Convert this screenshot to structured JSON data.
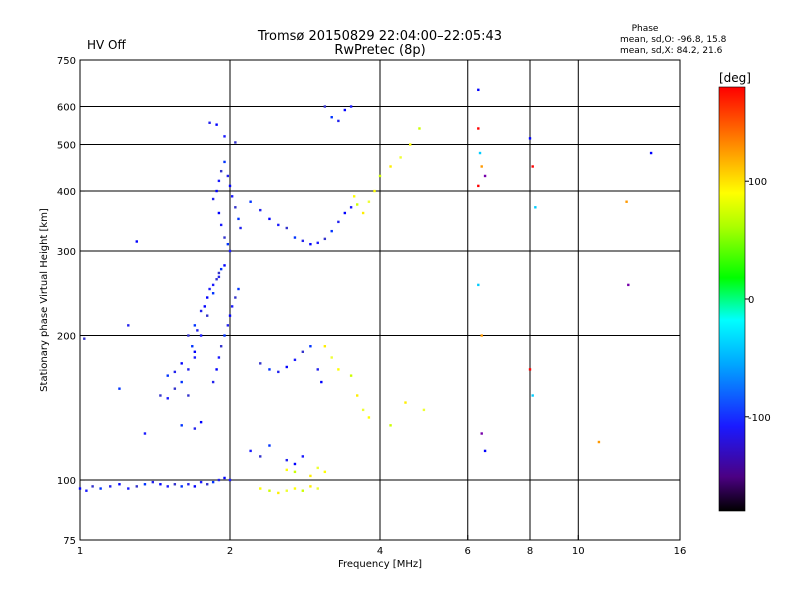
{
  "header": {
    "title_line1": "Tromsø 20150829 22:04:00–22:05:43",
    "title_line2": "RwPretec (8p)",
    "status": "HV Off",
    "status_color": "#d40000",
    "phase_heading": "Phase",
    "phase_o": "mean, sd,O: -96.8, 15.8",
    "phase_x": "mean, sd,X:  84.2, 21.6"
  },
  "chart_data": {
    "type": "scatter",
    "title": "Tromsø 20150829 22:04:00–22:05:43",
    "subtitle": "RwPretec (8p)",
    "xlabel": "Frequency [MHz]",
    "ylabel": "Stationary phase Virtual Height [km]",
    "xscale": "log",
    "yscale": "log",
    "xlim": [
      1,
      16
    ],
    "ylim": [
      75,
      750
    ],
    "xticks": [
      1,
      2,
      4,
      6,
      8,
      10,
      16
    ],
    "yticks": [
      75,
      100,
      200,
      300,
      400,
      500,
      600,
      750
    ],
    "x_gridlines": [
      2,
      4,
      6,
      8,
      10
    ],
    "y_gridlines": [
      100,
      200,
      300,
      400,
      500,
      600
    ],
    "colorbar": {
      "label": "[deg]",
      "range": [
        -180,
        180
      ],
      "ticks": [
        100,
        0,
        -100
      ],
      "scheme": "black-purple-blue-cyan-green-yellow-orange-red"
    },
    "series": [
      {
        "points": [
          [
            1.0,
            96
          ],
          [
            1.03,
            95
          ],
          [
            1.06,
            97
          ],
          [
            1.1,
            96
          ],
          [
            1.15,
            97
          ],
          [
            1.2,
            98
          ],
          [
            1.25,
            96
          ],
          [
            1.3,
            97
          ],
          [
            1.35,
            98
          ],
          [
            1.4,
            99
          ],
          [
            1.45,
            98
          ],
          [
            1.5,
            97
          ],
          [
            1.55,
            98
          ],
          [
            1.6,
            97
          ],
          [
            1.65,
            98
          ],
          [
            1.7,
            97
          ],
          [
            1.75,
            99
          ],
          [
            1.8,
            98
          ],
          [
            1.85,
            99
          ],
          [
            1.9,
            100
          ],
          [
            1.95,
            101
          ],
          [
            2.0,
            100
          ],
          [
            1.02,
            197
          ],
          [
            1.2,
            155
          ],
          [
            1.25,
            210
          ],
          [
            1.3,
            314
          ],
          [
            1.35,
            125
          ],
          [
            1.45,
            150
          ],
          [
            1.5,
            165
          ],
          [
            1.55,
            168
          ],
          [
            1.6,
            175
          ],
          [
            1.7,
            180
          ],
          [
            1.65,
            150
          ],
          [
            1.6,
            130
          ],
          [
            1.7,
            128
          ],
          [
            1.75,
            132
          ],
          [
            1.5,
            148
          ],
          [
            1.55,
            155
          ],
          [
            1.6,
            160
          ],
          [
            1.65,
            170
          ],
          [
            1.7,
            185
          ],
          [
            1.75,
            200
          ],
          [
            1.8,
            220
          ],
          [
            1.85,
            245
          ],
          [
            1.9,
            265
          ],
          [
            1.95,
            280
          ],
          [
            2.0,
            300
          ],
          [
            1.65,
            200
          ],
          [
            1.7,
            210
          ],
          [
            1.75,
            225
          ],
          [
            1.8,
            240
          ],
          [
            1.85,
            255
          ],
          [
            1.9,
            270
          ],
          [
            1.68,
            190
          ],
          [
            1.72,
            205
          ],
          [
            1.78,
            230
          ],
          [
            1.82,
            250
          ],
          [
            1.88,
            262
          ],
          [
            1.92,
            275
          ],
          [
            1.85,
            160
          ],
          [
            1.88,
            170
          ],
          [
            1.9,
            180
          ],
          [
            1.92,
            190
          ],
          [
            1.95,
            200
          ],
          [
            1.98,
            210
          ],
          [
            2.0,
            220
          ],
          [
            2.02,
            230
          ],
          [
            2.05,
            240
          ],
          [
            2.08,
            250
          ],
          [
            1.85,
            385
          ],
          [
            1.88,
            400
          ],
          [
            1.9,
            420
          ],
          [
            1.92,
            440
          ],
          [
            1.95,
            460
          ],
          [
            1.98,
            430
          ],
          [
            2.0,
            410
          ],
          [
            2.02,
            390
          ],
          [
            2.05,
            370
          ],
          [
            2.08,
            350
          ],
          [
            2.1,
            335
          ],
          [
            1.9,
            360
          ],
          [
            1.92,
            340
          ],
          [
            1.95,
            320
          ],
          [
            1.98,
            310
          ],
          [
            1.82,
            555
          ],
          [
            1.88,
            550
          ],
          [
            1.95,
            520
          ],
          [
            2.05,
            505
          ],
          [
            2.2,
            380
          ],
          [
            2.3,
            365
          ],
          [
            2.4,
            350
          ],
          [
            2.5,
            340
          ],
          [
            2.6,
            335
          ],
          [
            2.7,
            320
          ],
          [
            2.8,
            315
          ],
          [
            2.9,
            310
          ],
          [
            3.0,
            312
          ],
          [
            3.1,
            318
          ],
          [
            3.2,
            330
          ],
          [
            3.3,
            345
          ],
          [
            3.4,
            360
          ],
          [
            3.5,
            370
          ],
          [
            2.3,
            175
          ],
          [
            2.4,
            170
          ],
          [
            2.5,
            168
          ],
          [
            2.6,
            172
          ],
          [
            2.7,
            178
          ],
          [
            2.8,
            185
          ],
          [
            2.9,
            190
          ],
          [
            3.0,
            170
          ],
          [
            3.05,
            160
          ],
          [
            2.2,
            115
          ],
          [
            2.3,
            112
          ],
          [
            2.4,
            118
          ],
          [
            2.6,
            110
          ],
          [
            2.7,
            108
          ],
          [
            2.8,
            112
          ],
          [
            3.1,
            600
          ],
          [
            3.2,
            570
          ],
          [
            3.3,
            560
          ],
          [
            3.4,
            590
          ],
          [
            3.5,
            600
          ]
        ],
        "phase": "about -110"
      },
      {
        "points": [
          [
            2.3,
            96
          ],
          [
            2.4,
            95
          ],
          [
            2.5,
            94
          ],
          [
            2.6,
            95
          ],
          [
            2.7,
            96
          ],
          [
            2.8,
            95
          ],
          [
            2.9,
            97
          ],
          [
            3.0,
            96
          ],
          [
            3.55,
            390
          ],
          [
            3.6,
            375
          ],
          [
            3.7,
            360
          ],
          [
            3.8,
            380
          ],
          [
            3.9,
            400
          ],
          [
            4.0,
            430
          ],
          [
            4.2,
            450
          ],
          [
            4.4,
            470
          ],
          [
            4.6,
            500
          ],
          [
            4.8,
            540
          ],
          [
            3.1,
            190
          ],
          [
            3.2,
            180
          ],
          [
            3.3,
            170
          ],
          [
            3.5,
            165
          ],
          [
            3.6,
            150
          ],
          [
            3.7,
            140
          ],
          [
            3.8,
            135
          ],
          [
            4.2,
            130
          ],
          [
            4.5,
            145
          ],
          [
            4.9,
            140
          ],
          [
            2.6,
            105
          ],
          [
            2.7,
            104
          ],
          [
            2.9,
            102
          ],
          [
            3.0,
            106
          ],
          [
            3.1,
            104
          ]
        ],
        "phase": "about 100"
      },
      {
        "points": [
          [
            6.3,
            650
          ],
          [
            6.3,
            540
          ],
          [
            6.35,
            480
          ],
          [
            6.4,
            450
          ],
          [
            6.5,
            430
          ],
          [
            8.0,
            515
          ],
          [
            8.1,
            450
          ],
          [
            8.2,
            370
          ],
          [
            12.5,
            380
          ],
          [
            12.6,
            255
          ],
          [
            14.0,
            480
          ],
          [
            6.3,
            410
          ],
          [
            6.3,
            255
          ],
          [
            6.4,
            200
          ],
          [
            6.4,
            125
          ],
          [
            6.5,
            115
          ],
          [
            8.0,
            170
          ],
          [
            8.1,
            150
          ],
          [
            11.0,
            120
          ]
        ],
        "phase": "mixed"
      }
    ]
  }
}
